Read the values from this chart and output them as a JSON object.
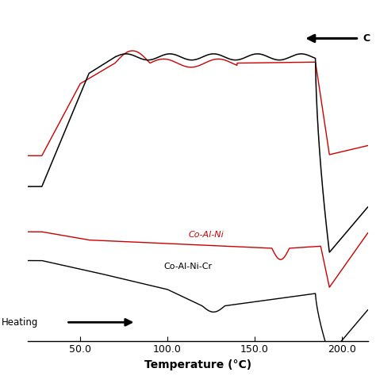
{
  "xlabel": "Temperature (°C)",
  "xlim": [
    20,
    215
  ],
  "xticks": [
    50.0,
    100.0,
    150.0,
    200.0
  ],
  "background_color": "#ffffff",
  "line1_label": "Co-Al-Ni",
  "line2_label": "Co-Al-Ni-Cr",
  "line_red": "#cc0000",
  "line_black": "#000000",
  "cooling_arrow_label": "C",
  "heating_arrow_label": "Heating"
}
